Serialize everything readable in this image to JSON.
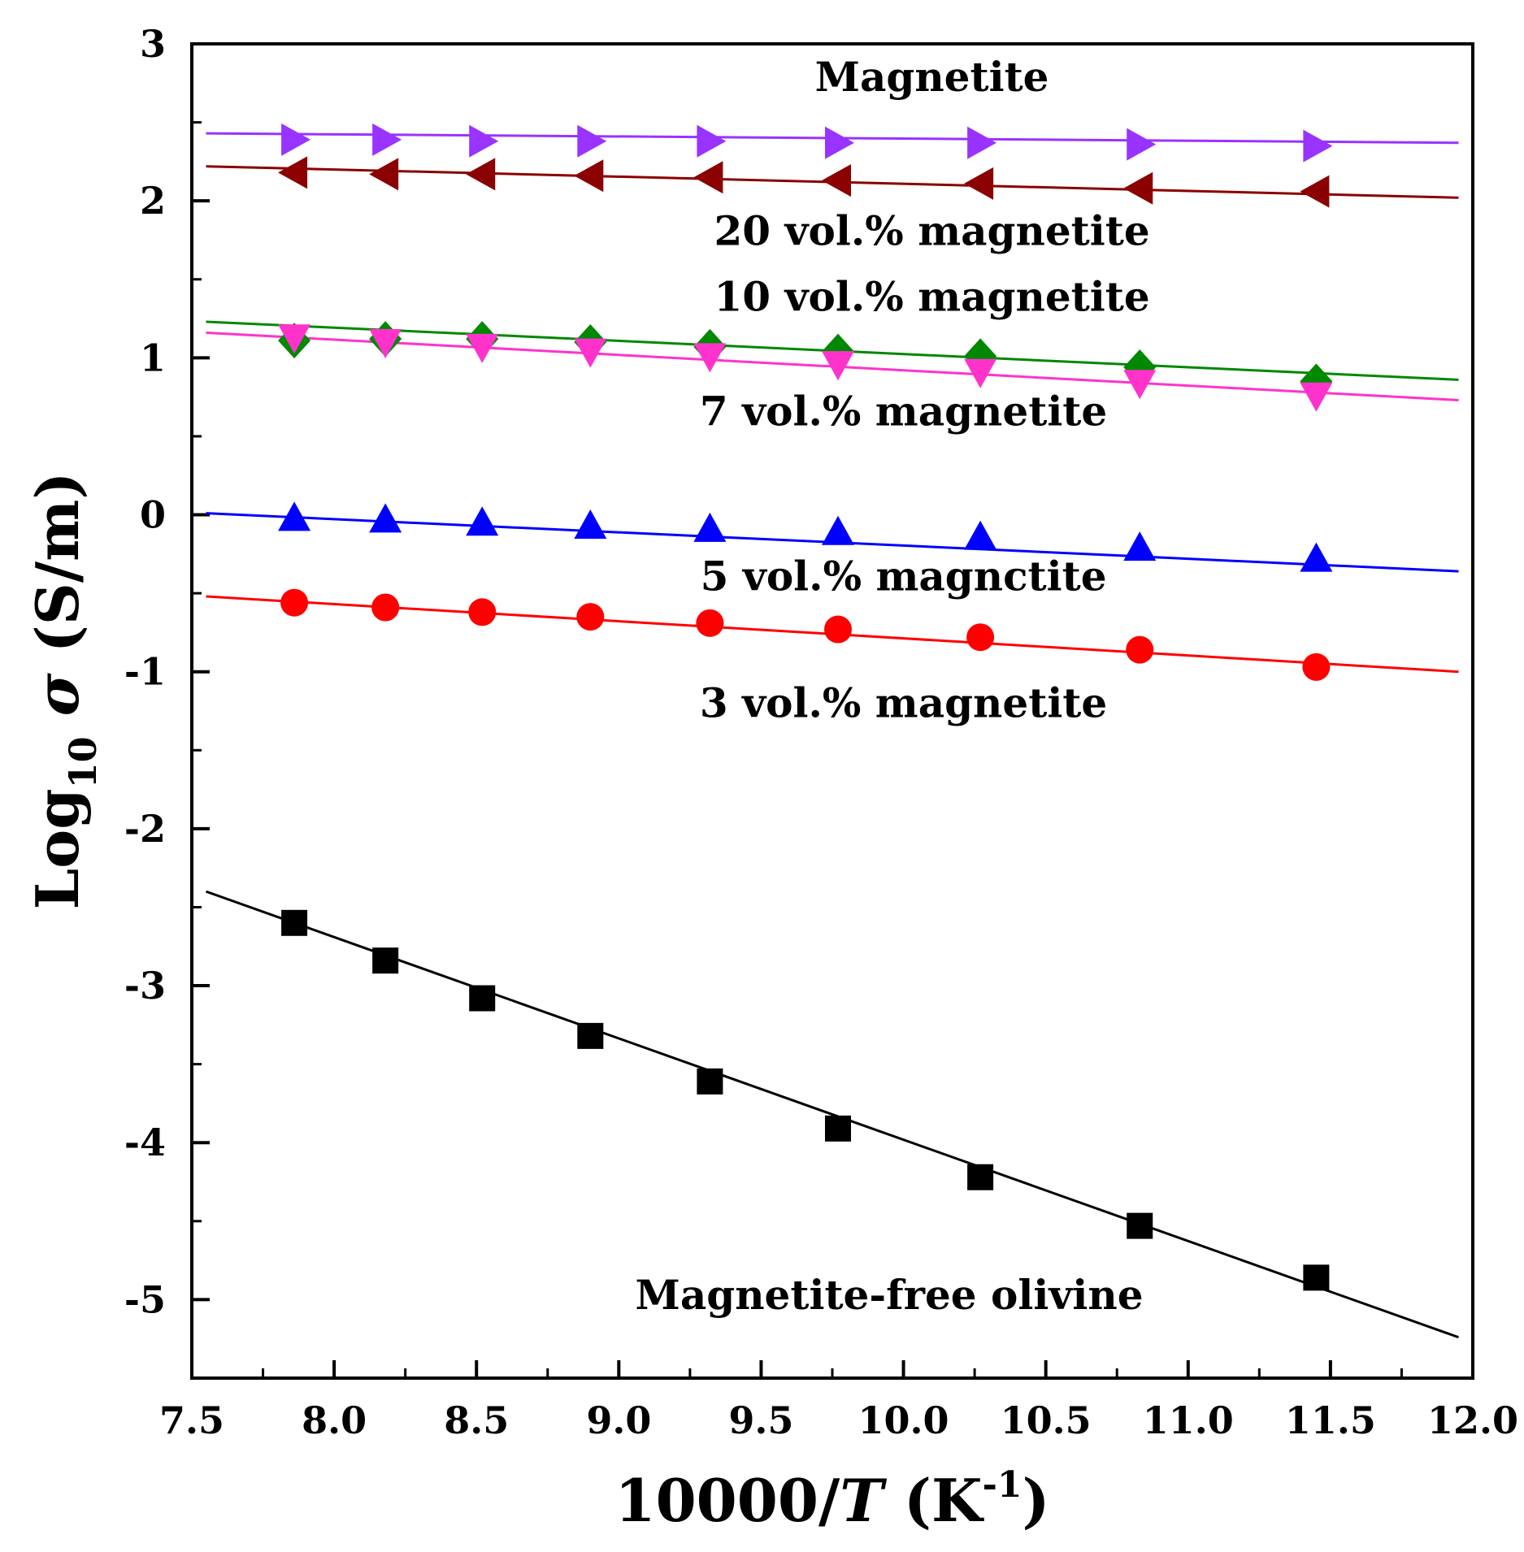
{
  "chart_data": {
    "type": "scatter",
    "title": "",
    "xlabel": {
      "prefix": "10000/",
      "var": "T",
      "unit_open": " (K",
      "unit_exp": "-1",
      "unit_close": ")"
    },
    "ylabel": {
      "prefix": "Log",
      "sub": "10",
      "var": " σ",
      "unit": " (S/m)"
    },
    "xlim": [
      7.5,
      12.0
    ],
    "ylim": [
      -5.5,
      3.0
    ],
    "xticks": [
      "7.5",
      "8.0",
      "8.5",
      "9.0",
      "9.5",
      "10.0",
      "10.5",
      "11.0",
      "11.5",
      "12.0"
    ],
    "yticks": [
      "3",
      "2",
      "1",
      "0",
      "-1",
      "-2",
      "-3",
      "-4",
      "-5"
    ],
    "x": [
      7.86,
      8.18,
      8.52,
      8.9,
      9.32,
      9.77,
      10.27,
      10.83,
      11.45
    ],
    "series": [
      {
        "name": "Magnetite",
        "color": "#9933ff",
        "marker": "triangle-right",
        "values": [
          2.39,
          2.39,
          2.38,
          2.38,
          2.38,
          2.37,
          2.37,
          2.36,
          2.35
        ],
        "fit": {
          "x": [
            7.55,
            11.95
          ],
          "y": [
            2.43,
            2.37
          ]
        }
      },
      {
        "name": "20 vol.% magnetite",
        "color": "#8b0000",
        "marker": "triangle-left",
        "values": [
          2.18,
          2.17,
          2.17,
          2.16,
          2.15,
          2.13,
          2.11,
          2.08,
          2.06
        ],
        "fit": {
          "x": [
            7.55,
            11.95
          ],
          "y": [
            2.22,
            2.02
          ]
        }
      },
      {
        "name": "10 vol.% magnetite",
        "color": "#008800",
        "marker": "diamond",
        "values": [
          1.11,
          1.12,
          1.12,
          1.1,
          1.07,
          1.04,
          1.01,
          0.94,
          0.85
        ],
        "fit": {
          "x": [
            7.55,
            11.95
          ],
          "y": [
            1.23,
            0.86
          ]
        }
      },
      {
        "name": "7 vol.% magnetite",
        "color": "#ff33cc",
        "marker": "triangle-down",
        "values": [
          1.13,
          1.1,
          1.07,
          1.04,
          1.01,
          0.96,
          0.91,
          0.84,
          0.76
        ],
        "fit": {
          "x": [
            7.55,
            11.95
          ],
          "y": [
            1.16,
            0.73
          ]
        }
      },
      {
        "name": "5 vol.% magnetite",
        "color": "#0000ff",
        "marker": "triangle-up",
        "values": [
          -0.02,
          -0.03,
          -0.05,
          -0.07,
          -0.09,
          -0.11,
          -0.14,
          -0.21,
          -0.28
        ],
        "fit": {
          "x": [
            7.55,
            11.95
          ],
          "y": [
            0.01,
            -0.36
          ]
        }
      },
      {
        "name": "3 vol.% magnetite",
        "color": "#ff0000",
        "marker": "circle",
        "values": [
          -0.56,
          -0.59,
          -0.62,
          -0.65,
          -0.69,
          -0.73,
          -0.78,
          -0.86,
          -0.97
        ],
        "fit": {
          "x": [
            7.55,
            11.95
          ],
          "y": [
            -0.52,
            -1.0
          ]
        }
      },
      {
        "name": "Magnetite-free olivine",
        "color": "#000000",
        "marker": "square",
        "values": [
          -2.6,
          -2.84,
          -3.08,
          -3.32,
          -3.61,
          -3.91,
          -4.22,
          -4.53,
          -4.86
        ],
        "fit": {
          "x": [
            7.55,
            11.95
          ],
          "y": [
            -2.4,
            -5.24
          ]
        }
      }
    ],
    "annotations": [
      {
        "text": "Magnetite",
        "x": 10.1,
        "y": 2.7
      },
      {
        "text": "20 vol.% magnetite",
        "x": 10.1,
        "y": 1.72
      },
      {
        "text": "10 vol.% magnetite",
        "x": 10.1,
        "y": 1.3
      },
      {
        "text": "7 vol.% magnetite",
        "x": 10.0,
        "y": 0.57
      },
      {
        "text": "5 vol.% magnctite",
        "x": 10.0,
        "y": -0.48
      },
      {
        "text": "3 vol.% magnetite",
        "x": 10.0,
        "y": -1.29
      },
      {
        "text": "Magnetite-free olivine",
        "x": 9.95,
        "y": -5.06
      }
    ]
  }
}
